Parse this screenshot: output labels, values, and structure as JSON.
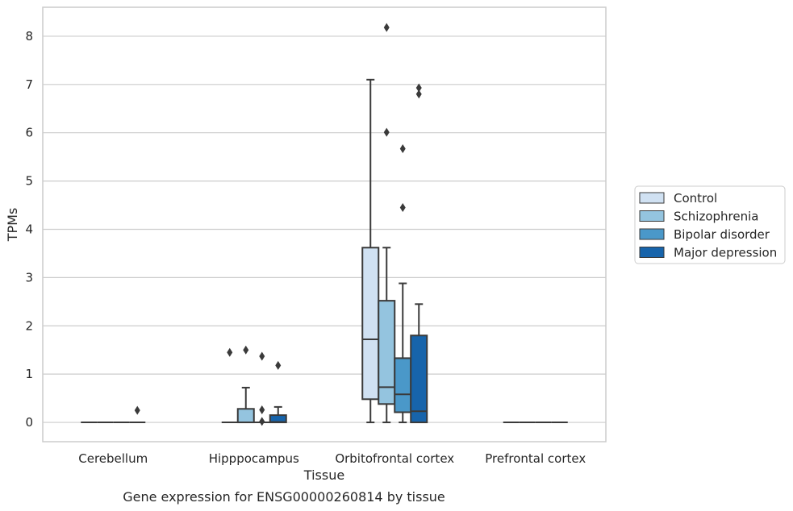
{
  "chart_data": {
    "type": "box",
    "title": "Gene expression for ENSG00000260814 by tissue",
    "xlabel": "Tissue",
    "ylabel": "TPMs",
    "ylim": [
      -0.4,
      8.6
    ],
    "yticks": [
      0,
      1,
      2,
      3,
      4,
      5,
      6,
      7,
      8
    ],
    "grid": true,
    "legend_position": "right",
    "categories": [
      "Cerebellum",
      "Hipppocampus",
      "Orbitofrontal cortex",
      "Prefrontal cortex"
    ],
    "series": [
      {
        "name": "Control",
        "color": "#d0e1f2",
        "boxes": [
          {
            "q1": 0,
            "median": 0,
            "q3": 0,
            "whisker_low": 0,
            "whisker_high": 0,
            "outliers": []
          },
          {
            "q1": 0,
            "median": 0,
            "q3": 0,
            "whisker_low": 0,
            "whisker_high": 0,
            "outliers": [
              1.45
            ]
          },
          {
            "q1": 0.48,
            "median": 1.72,
            "q3": 3.62,
            "whisker_low": 0,
            "whisker_high": 7.1,
            "outliers": []
          },
          {
            "q1": 0,
            "median": 0,
            "q3": 0,
            "whisker_low": 0,
            "whisker_high": 0,
            "outliers": []
          }
        ]
      },
      {
        "name": "Schizophrenia",
        "color": "#94c4df",
        "boxes": [
          {
            "q1": 0,
            "median": 0,
            "q3": 0,
            "whisker_low": 0,
            "whisker_high": 0,
            "outliers": []
          },
          {
            "q1": 0,
            "median": 0,
            "q3": 0.28,
            "whisker_low": 0,
            "whisker_high": 0.72,
            "outliers": [
              1.5
            ]
          },
          {
            "q1": 0.38,
            "median": 0.73,
            "q3": 2.52,
            "whisker_low": 0,
            "whisker_high": 3.62,
            "outliers": [
              6.01,
              8.18
            ]
          },
          {
            "q1": 0,
            "median": 0,
            "q3": 0,
            "whisker_low": 0,
            "whisker_high": 0,
            "outliers": []
          }
        ]
      },
      {
        "name": "Bipolar disorder",
        "color": "#4a98c9",
        "boxes": [
          {
            "q1": 0,
            "median": 0,
            "q3": 0,
            "whisker_low": 0,
            "whisker_high": 0,
            "outliers": []
          },
          {
            "q1": 0,
            "median": 0,
            "q3": 0,
            "whisker_low": 0,
            "whisker_high": 0,
            "outliers": [
              0.02,
              0.26,
              1.37
            ]
          },
          {
            "q1": 0.21,
            "median": 0.58,
            "q3": 1.33,
            "whisker_low": 0,
            "whisker_high": 2.88,
            "outliers": [
              4.45,
              5.67
            ]
          },
          {
            "q1": 0,
            "median": 0,
            "q3": 0,
            "whisker_low": 0,
            "whisker_high": 0,
            "outliers": []
          }
        ]
      },
      {
        "name": "Major depression",
        "color": "#1764ab",
        "boxes": [
          {
            "q1": 0,
            "median": 0,
            "q3": 0,
            "whisker_low": 0,
            "whisker_high": 0,
            "outliers": [
              0.25
            ]
          },
          {
            "q1": 0,
            "median": 0.01,
            "q3": 0.15,
            "whisker_low": 0,
            "whisker_high": 0.32,
            "outliers": [
              1.18
            ]
          },
          {
            "q1": 0,
            "median": 0.23,
            "q3": 1.8,
            "whisker_low": 0,
            "whisker_high": 2.45,
            "outliers": [
              6.8,
              6.93
            ]
          },
          {
            "q1": 0,
            "median": 0,
            "q3": 0,
            "whisker_low": 0,
            "whisker_high": 0,
            "outliers": []
          }
        ]
      }
    ]
  }
}
